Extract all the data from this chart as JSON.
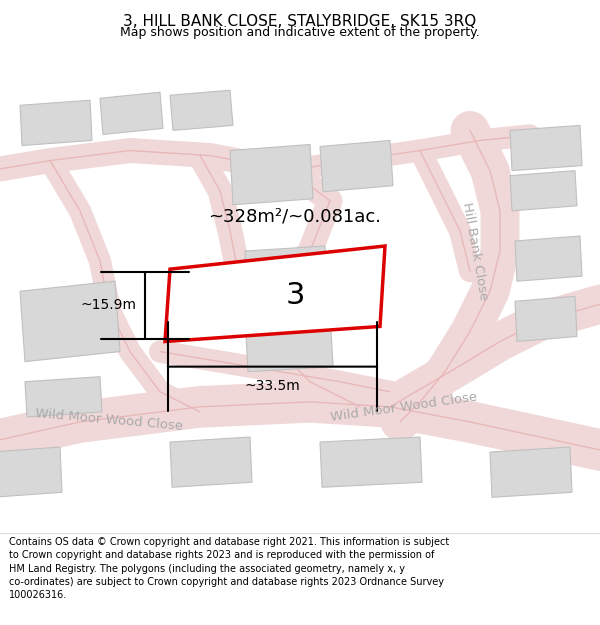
{
  "title": "3, HILL BANK CLOSE, STALYBRIDGE, SK15 3RQ",
  "subtitle": "Map shows position and indicative extent of the property.",
  "footer": "Contains OS data © Crown copyright and database right 2021. This information is subject\nto Crown copyright and database rights 2023 and is reproduced with the permission of\nHM Land Registry. The polygons (including the associated geometry, namely x, y\nco-ordinates) are subject to Crown copyright and database rights 2023 Ordnance Survey\n100026316.",
  "map_bg": "#f7f4f4",
  "road_fill": "#f0d8d8",
  "road_edge": "#e8b8b8",
  "block_fill": "#d8d8d8",
  "block_edge": "#c0c0c0",
  "highlight_color": "#dd0000",
  "area_text": "~328m²/~0.081ac.",
  "label": "3",
  "dim_width": "~33.5m",
  "dim_height": "~15.9m",
  "road_label_color": "#aaaaaa",
  "title_fontsize": 11,
  "subtitle_fontsize": 9,
  "footer_fontsize": 7
}
